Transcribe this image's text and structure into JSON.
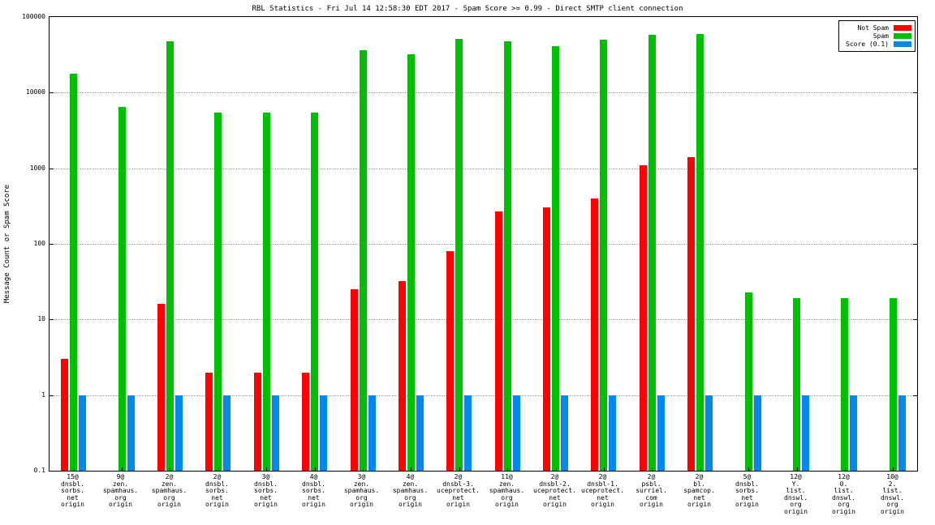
{
  "title": "RBL Statistics - Fri Jul 14 12:58:30 EDT 2017 - Spam Score >= 0.99 - Direct SMTP client connection",
  "ylabel": "Message Count or Spam Score",
  "legend": [
    {
      "label": "Not Spam",
      "color": "#ff0000"
    },
    {
      "label": "Spam",
      "color": "#00bf00"
    },
    {
      "label": "Score (0.1)",
      "color": "#0088ee"
    }
  ],
  "chart_data": {
    "type": "bar",
    "yscale": "log",
    "ylim": [
      0.1,
      100000
    ],
    "ytick_labels": [
      "0.1",
      "1",
      "10",
      "100",
      "1000",
      "10000",
      "100000"
    ],
    "grid": true,
    "legend_position": "top-right",
    "categories": [
      [
        "15@",
        "dnsbl.",
        "sorbs.",
        "net",
        "origin"
      ],
      [
        "9@",
        "zen.",
        "spamhaus.",
        "org",
        "origin"
      ],
      [
        "2@",
        "zen.",
        "spamhaus.",
        "org",
        "origin"
      ],
      [
        "2@",
        "dnsbl.",
        "sorbs.",
        "net",
        "origin"
      ],
      [
        "3@",
        "dnsbl.",
        "sorbs.",
        "net",
        "origin"
      ],
      [
        "4@",
        "dnsbl.",
        "sorbs.",
        "net",
        "origin"
      ],
      [
        "3@",
        "zen.",
        "spamhaus.",
        "org",
        "origin"
      ],
      [
        "4@",
        "zen.",
        "spamhaus.",
        "org",
        "origin"
      ],
      [
        "2@",
        "dnsbl-3.",
        "uceprotect.",
        "net",
        "origin"
      ],
      [
        "11@",
        "zen.",
        "spamhaus.",
        "org",
        "origin"
      ],
      [
        "2@",
        "dnsbl-2.",
        "uceprotect.",
        "net",
        "origin"
      ],
      [
        "2@",
        "dnsbl-1.",
        "uceprotect.",
        "net",
        "origin"
      ],
      [
        "2@",
        "psbl.",
        "surriel.",
        "com",
        "origin"
      ],
      [
        "2@",
        "bl.",
        "spamcop.",
        "net",
        "origin"
      ],
      [
        "5@",
        "dnsbl.",
        "sorbs.",
        "net",
        "origin"
      ],
      [
        "12@",
        "Y.",
        "list.",
        "dnswl.",
        "org",
        "origin"
      ],
      [
        "12@",
        "0.",
        "list.",
        "dnswl.",
        "org",
        "origin"
      ],
      [
        "10@",
        "2.",
        "list.",
        "dnswl.",
        "org",
        "origin"
      ]
    ],
    "series": [
      {
        "name": "Not Spam",
        "color": "#ff0000",
        "values": [
          3,
          null,
          16,
          2,
          2,
          2,
          25,
          32,
          80,
          270,
          300,
          400,
          1100,
          1400,
          null,
          null,
          null,
          null
        ]
      },
      {
        "name": "Spam",
        "color": "#00bf00",
        "values": [
          18000,
          6500,
          48000,
          5500,
          5500,
          5500,
          36000,
          32000,
          51000,
          48000,
          41000,
          50000,
          58000,
          60000,
          23,
          19,
          19,
          19
        ]
      },
      {
        "name": "Score (0.1)",
        "color": "#0088ee",
        "values": [
          1,
          1,
          1,
          1,
          1,
          1,
          1,
          1,
          1,
          1,
          1,
          1,
          1,
          1,
          1,
          1,
          1,
          1
        ]
      }
    ]
  }
}
